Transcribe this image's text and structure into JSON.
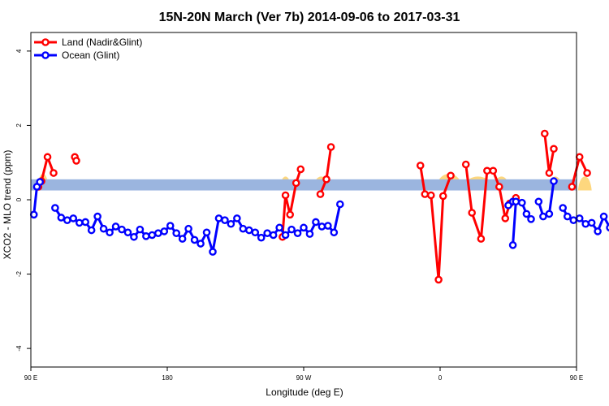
{
  "chart_data": {
    "type": "line",
    "title": "15N-20N March (Ver 7b)   2014-09-06 to 2017-03-31",
    "xlabel": "Longitude (deg E)",
    "ylabel": "XCO2 - MLO trend (ppm)",
    "xlim": [
      90,
      450
    ],
    "ylim": [
      -4.5,
      4.5
    ],
    "x_ticks": [
      {
        "value": 90,
        "label": "90 E"
      },
      {
        "value": 180,
        "label": "180"
      },
      {
        "value": 270,
        "label": "90 W"
      },
      {
        "value": 360,
        "label": "0"
      },
      {
        "value": 450,
        "label": "90 E"
      },
      {
        "value": 540,
        "label": "180"
      }
    ],
    "y_ticks": [
      {
        "value": -4,
        "label": "-4"
      },
      {
        "value": -2,
        "label": "-2"
      },
      {
        "value": 0,
        "label": "0"
      },
      {
        "value": 2,
        "label": "2"
      },
      {
        "value": 4,
        "label": "4"
      }
    ],
    "legend": {
      "placement": "top-left",
      "entries": [
        {
          "label": "Land (Nadir&Glint)",
          "color": "#ff0000"
        },
        {
          "label": "Ocean (Glint)",
          "color": "#0000ff"
        }
      ]
    },
    "reference_band": {
      "y_range": [
        0.25,
        0.55
      ],
      "color": "#9bb5df"
    },
    "land_surface_bumps": {
      "color": "#fdd77e",
      "segments": [
        [
          94,
          102,
          0.85
        ],
        [
          111,
          114,
          0.6
        ],
        [
          254,
          262,
          0.75
        ],
        [
          276,
          287,
          0.75
        ],
        [
          357,
          375,
          0.85
        ],
        [
          375,
          395,
          0.75
        ],
        [
          395,
          406,
          0.75
        ],
        [
          431,
          441,
          0.75
        ],
        [
          451,
          460,
          0.75
        ],
        [
          478,
          481,
          0.6
        ]
      ]
    },
    "series": [
      {
        "name": "Land (Nadir&Glint)",
        "color": "#ff0000",
        "segments": [
          [
            [
              95,
              0.35
            ],
            [
              97,
              0.5
            ],
            [
              101,
              1.15
            ],
            [
              105,
              0.72
            ]
          ],
          [
            [
              119,
              1.15
            ],
            [
              120,
              1.05
            ]
          ],
          [
            [
              256,
              -1.0
            ],
            [
              258,
              0.12
            ],
            [
              261,
              -0.4
            ],
            [
              265,
              0.45
            ],
            [
              268,
              0.82
            ]
          ],
          [
            [
              281,
              0.15
            ],
            [
              285,
              0.55
            ],
            [
              288,
              1.42
            ]
          ],
          [
            [
              347,
              0.92
            ],
            [
              350,
              0.15
            ],
            [
              354,
              0.12
            ],
            [
              359,
              -2.15
            ],
            [
              362,
              0.1
            ],
            [
              367,
              0.65
            ]
          ],
          [
            [
              377,
              0.95
            ],
            [
              381,
              -0.35
            ],
            [
              387,
              -1.05
            ],
            [
              391,
              0.78
            ],
            [
              395,
              0.78
            ],
            [
              399,
              0.35
            ],
            [
              403,
              -0.5
            ],
            [
              406,
              -0.1
            ],
            [
              410,
              0.05
            ]
          ],
          [
            [
              429,
              1.78
            ],
            [
              432,
              0.72
            ],
            [
              435,
              1.37
            ]
          ],
          [
            [
              447,
              0.35
            ],
            [
              452,
              1.15
            ],
            [
              457,
              0.72
            ]
          ],
          [
            [
              474,
              1.15
            ],
            [
              475,
              1.05
            ]
          ]
        ]
      },
      {
        "name": "Ocean (Glint)",
        "color": "#0000ff",
        "segments": [
          [
            [
              92,
              -0.4
            ],
            [
              94,
              0.35
            ],
            [
              96,
              0.48
            ]
          ],
          [
            [
              106,
              -0.22
            ],
            [
              110,
              -0.48
            ],
            [
              114,
              -0.55
            ],
            [
              118,
              -0.5
            ],
            [
              122,
              -0.62
            ],
            [
              126,
              -0.6
            ],
            [
              130,
              -0.82
            ],
            [
              134,
              -0.45
            ],
            [
              138,
              -0.78
            ],
            [
              142,
              -0.88
            ],
            [
              146,
              -0.72
            ],
            [
              150,
              -0.8
            ],
            [
              154,
              -0.88
            ],
            [
              158,
              -1.0
            ],
            [
              162,
              -0.8
            ],
            [
              166,
              -0.98
            ],
            [
              170,
              -0.95
            ],
            [
              174,
              -0.9
            ],
            [
              178,
              -0.85
            ],
            [
              182,
              -0.7
            ],
            [
              186,
              -0.9
            ],
            [
              190,
              -1.05
            ],
            [
              194,
              -0.78
            ],
            [
              198,
              -1.08
            ],
            [
              202,
              -1.18
            ],
            [
              206,
              -0.88
            ],
            [
              210,
              -1.4
            ],
            [
              214,
              -0.5
            ],
            [
              218,
              -0.55
            ],
            [
              222,
              -0.65
            ],
            [
              226,
              -0.5
            ],
            [
              230,
              -0.78
            ],
            [
              234,
              -0.82
            ],
            [
              238,
              -0.88
            ],
            [
              242,
              -1.02
            ],
            [
              246,
              -0.9
            ],
            [
              250,
              -0.95
            ],
            [
              254,
              -0.75
            ],
            [
              258,
              -0.95
            ],
            [
              262,
              -0.8
            ],
            [
              266,
              -0.9
            ],
            [
              270,
              -0.75
            ],
            [
              274,
              -0.92
            ],
            [
              278,
              -0.6
            ],
            [
              282,
              -0.72
            ],
            [
              286,
              -0.7
            ],
            [
              290,
              -0.88
            ],
            [
              294,
              -0.12
            ]
          ],
          [
            [
              405,
              -0.15
            ],
            [
              408,
              -0.05
            ]
          ],
          [
            [
              408,
              -1.22
            ],
            [
              410,
              -0.05
            ],
            [
              414,
              -0.08
            ],
            [
              417,
              -0.38
            ],
            [
              420,
              -0.52
            ]
          ],
          [
            [
              425,
              -0.05
            ],
            [
              428,
              -0.45
            ],
            [
              432,
              -0.38
            ],
            [
              435,
              0.5
            ]
          ],
          [
            [
              441,
              -0.22
            ],
            [
              444,
              -0.45
            ],
            [
              448,
              -0.55
            ],
            [
              452,
              -0.5
            ],
            [
              456,
              -0.65
            ],
            [
              460,
              -0.62
            ],
            [
              464,
              -0.85
            ],
            [
              468,
              -0.45
            ],
            [
              472,
              -0.75
            ],
            [
              476,
              -0.88
            ],
            [
              480,
              -0.72
            ],
            [
              484,
              -0.8
            ],
            [
              488,
              -0.85
            ],
            [
              492,
              -1.0
            ],
            [
              496,
              -0.8
            ]
          ]
        ]
      }
    ]
  }
}
